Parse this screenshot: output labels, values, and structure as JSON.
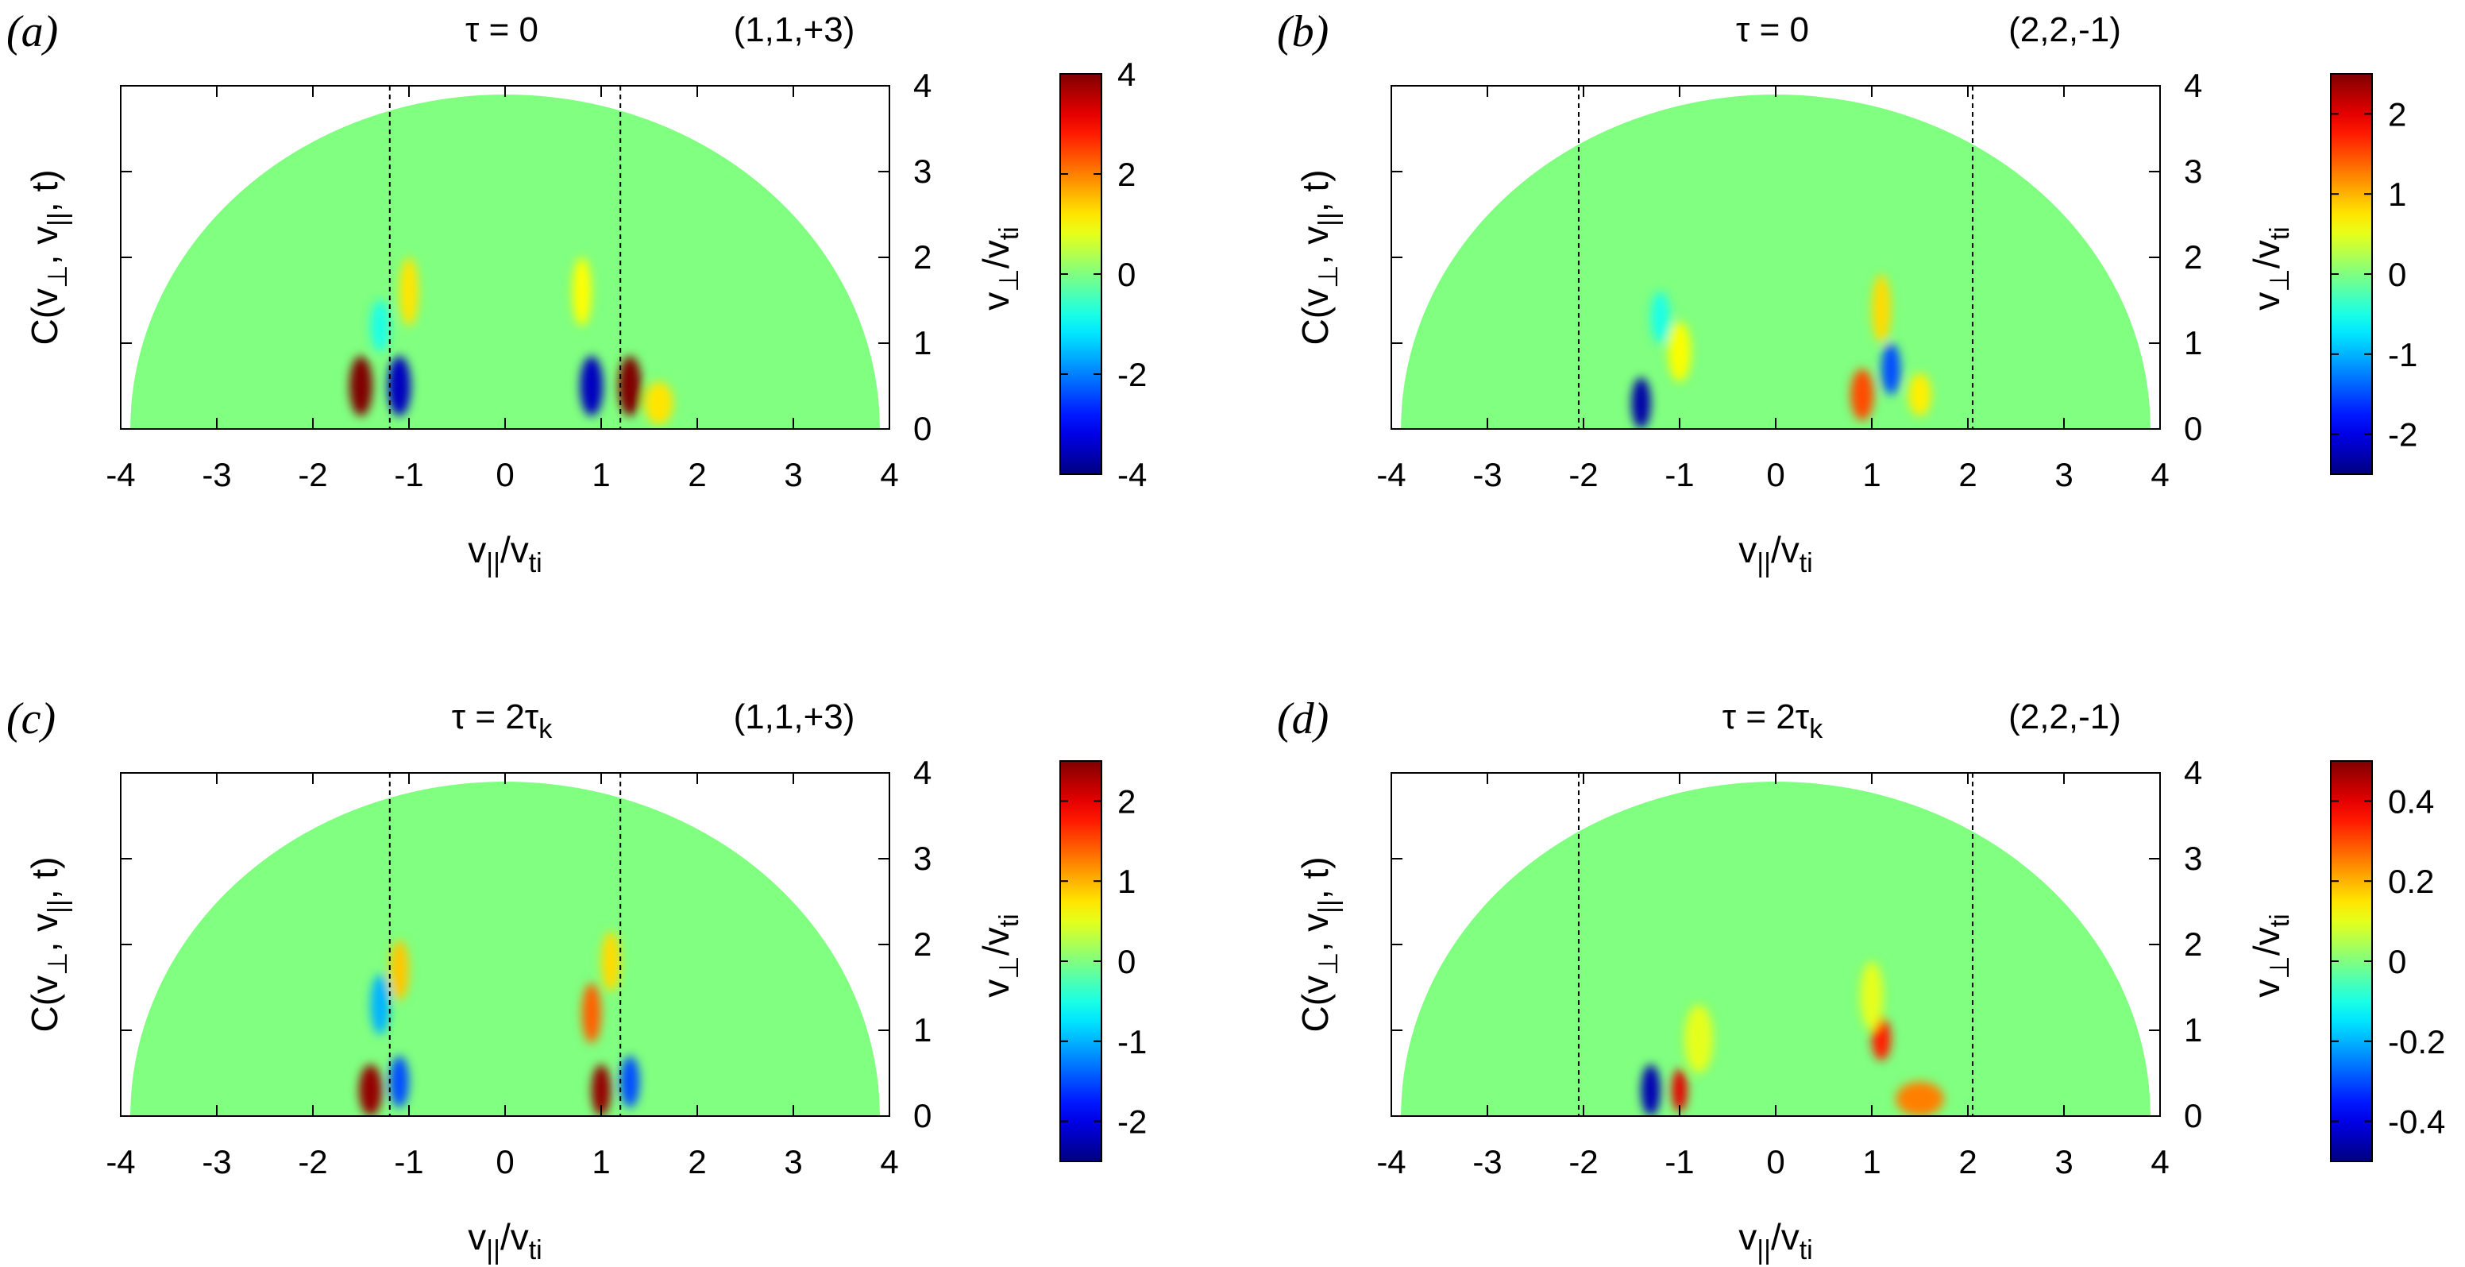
{
  "figure": {
    "common_labels": {
      "xlabel": "v||/vti",
      "ylabel_left": "C(v⊥, v||, t)",
      "ylabel_right": "v⊥/vti"
    }
  },
  "chart_data": [
    {
      "type": "heatmap",
      "panel": "(a)",
      "title": "τ = 0",
      "mode": "(1,1,+3)",
      "xlabel": "v||/vti",
      "ylabel": "C(v⊥, v||, t)",
      "y2label": "v⊥/vti",
      "xlim": [
        -4,
        4
      ],
      "ylim": [
        0,
        4
      ],
      "xticks": [
        -4,
        -3,
        -2,
        -1,
        0,
        1,
        2,
        3,
        4
      ],
      "yticks": [
        0,
        1,
        2,
        3,
        4
      ],
      "domain": "half-disk of radius 3.9",
      "resonance_lines": [
        -1.2,
        1.2
      ],
      "colorbar": {
        "range": [
          -4,
          4
        ],
        "ticks": [
          -4,
          -2,
          0,
          2,
          4
        ],
        "labels": [
          "-4",
          "-2",
          "0",
          "2",
          "4"
        ],
        "colormap": "jet"
      },
      "features": [
        {
          "x": -1.5,
          "y": 0.5,
          "value": 4,
          "rx": 0.12,
          "ry": 0.35
        },
        {
          "x": -1.1,
          "y": 0.5,
          "value": -3.5,
          "rx": 0.12,
          "ry": 0.35
        },
        {
          "x": -1.0,
          "y": 1.6,
          "value": 1.2,
          "rx": 0.1,
          "ry": 0.4
        },
        {
          "x": -1.3,
          "y": 1.2,
          "value": -0.8,
          "rx": 0.1,
          "ry": 0.3
        },
        {
          "x": 0.9,
          "y": 0.5,
          "value": -3.5,
          "rx": 0.12,
          "ry": 0.35
        },
        {
          "x": 1.3,
          "y": 0.5,
          "value": 4,
          "rx": 0.12,
          "ry": 0.35
        },
        {
          "x": 0.8,
          "y": 1.6,
          "value": 1.0,
          "rx": 0.1,
          "ry": 0.4
        },
        {
          "x": 1.6,
          "y": 0.3,
          "value": 1.2,
          "rx": 0.15,
          "ry": 0.25
        }
      ]
    },
    {
      "type": "heatmap",
      "panel": "(b)",
      "title": "τ = 0",
      "mode": "(2,2,-1)",
      "xlabel": "v||/vti",
      "ylabel": "C(v⊥, v||, t)",
      "y2label": "v⊥/vti",
      "xlim": [
        -4,
        4
      ],
      "ylim": [
        0,
        4
      ],
      "xticks": [
        -4,
        -3,
        -2,
        -1,
        0,
        1,
        2,
        3,
        4
      ],
      "yticks": [
        0,
        1,
        2,
        3,
        4
      ],
      "domain": "half-disk of radius 3.9",
      "resonance_lines": [
        -2.05,
        2.05
      ],
      "colorbar": {
        "range": [
          -2.5,
          2.5
        ],
        "ticks": [
          -2,
          -1,
          0,
          1,
          2
        ],
        "labels": [
          "-2",
          "-1",
          "0",
          "1",
          "2"
        ],
        "colormap": "jet"
      },
      "features": [
        {
          "x": -1.4,
          "y": 0.3,
          "value": -2.3,
          "rx": 0.1,
          "ry": 0.3
        },
        {
          "x": -1.0,
          "y": 0.9,
          "value": 0.6,
          "rx": 0.12,
          "ry": 0.35
        },
        {
          "x": -1.2,
          "y": 1.3,
          "value": -0.5,
          "rx": 0.1,
          "ry": 0.3
        },
        {
          "x": 0.9,
          "y": 0.4,
          "value": 1.5,
          "rx": 0.12,
          "ry": 0.3
        },
        {
          "x": 1.2,
          "y": 0.7,
          "value": -1.5,
          "rx": 0.1,
          "ry": 0.3
        },
        {
          "x": 1.1,
          "y": 1.4,
          "value": 0.8,
          "rx": 0.1,
          "ry": 0.4
        },
        {
          "x": 1.5,
          "y": 0.4,
          "value": 0.7,
          "rx": 0.12,
          "ry": 0.25
        }
      ]
    },
    {
      "type": "heatmap",
      "panel": "(c)",
      "title": "τ = 2τk",
      "mode": "(1,1,+3)",
      "xlabel": "v||/vti",
      "ylabel": "C(v⊥, v||, t)",
      "y2label": "v⊥/vti",
      "xlim": [
        -4,
        4
      ],
      "ylim": [
        0,
        4
      ],
      "xticks": [
        -4,
        -3,
        -2,
        -1,
        0,
        1,
        2,
        3,
        4
      ],
      "yticks": [
        0,
        1,
        2,
        3,
        4
      ],
      "domain": "half-disk of radius 3.9",
      "resonance_lines": [
        -1.2,
        1.2
      ],
      "colorbar": {
        "range": [
          -2.5,
          2.5
        ],
        "ticks": [
          -2,
          -1,
          0,
          1,
          2
        ],
        "labels": [
          "-2",
          "-1",
          "0",
          "1",
          "2"
        ],
        "colormap": "jet"
      },
      "features": [
        {
          "x": -1.4,
          "y": 0.3,
          "value": 2.4,
          "rx": 0.12,
          "ry": 0.3
        },
        {
          "x": -1.1,
          "y": 0.4,
          "value": -1.5,
          "rx": 0.1,
          "ry": 0.3
        },
        {
          "x": -1.3,
          "y": 1.3,
          "value": -1.0,
          "rx": 0.1,
          "ry": 0.35
        },
        {
          "x": -1.1,
          "y": 1.7,
          "value": 0.9,
          "rx": 0.1,
          "ry": 0.35
        },
        {
          "x": 1.0,
          "y": 0.3,
          "value": 2.4,
          "rx": 0.1,
          "ry": 0.3
        },
        {
          "x": 1.3,
          "y": 0.4,
          "value": -1.5,
          "rx": 0.1,
          "ry": 0.3
        },
        {
          "x": 0.9,
          "y": 1.2,
          "value": 1.4,
          "rx": 0.1,
          "ry": 0.35
        },
        {
          "x": 1.1,
          "y": 1.8,
          "value": 0.8,
          "rx": 0.1,
          "ry": 0.35
        }
      ]
    },
    {
      "type": "heatmap",
      "panel": "(d)",
      "title": "τ = 2τk",
      "mode": "(2,2,-1)",
      "xlabel": "v||/vti",
      "ylabel": "C(v⊥, v||, t)",
      "y2label": "v⊥/vti",
      "xlim": [
        -4,
        4
      ],
      "ylim": [
        0,
        4
      ],
      "xticks": [
        -4,
        -3,
        -2,
        -1,
        0,
        1,
        2,
        3,
        4
      ],
      "yticks": [
        0,
        1,
        2,
        3,
        4
      ],
      "domain": "half-disk of radius 3.9",
      "resonance_lines": [
        -2.05,
        2.05
      ],
      "colorbar": {
        "range": [
          -0.5,
          0.5
        ],
        "ticks": [
          -0.4,
          -0.2,
          0,
          0.2,
          0.4
        ],
        "labels": [
          "-0.4",
          "-0.2",
          "0",
          "0.2",
          "0.4"
        ],
        "colormap": "jet"
      },
      "features": [
        {
          "x": -1.3,
          "y": 0.3,
          "value": -0.45,
          "rx": 0.1,
          "ry": 0.3
        },
        {
          "x": -1.0,
          "y": 0.3,
          "value": 0.4,
          "rx": 0.08,
          "ry": 0.25
        },
        {
          "x": -0.8,
          "y": 0.9,
          "value": 0.1,
          "rx": 0.15,
          "ry": 0.4
        },
        {
          "x": 1.1,
          "y": 0.9,
          "value": 0.35,
          "rx": 0.1,
          "ry": 0.25
        },
        {
          "x": 1.5,
          "y": 0.2,
          "value": 0.25,
          "rx": 0.25,
          "ry": 0.2
        },
        {
          "x": 1.0,
          "y": 1.4,
          "value": 0.1,
          "rx": 0.12,
          "ry": 0.4
        }
      ]
    }
  ]
}
